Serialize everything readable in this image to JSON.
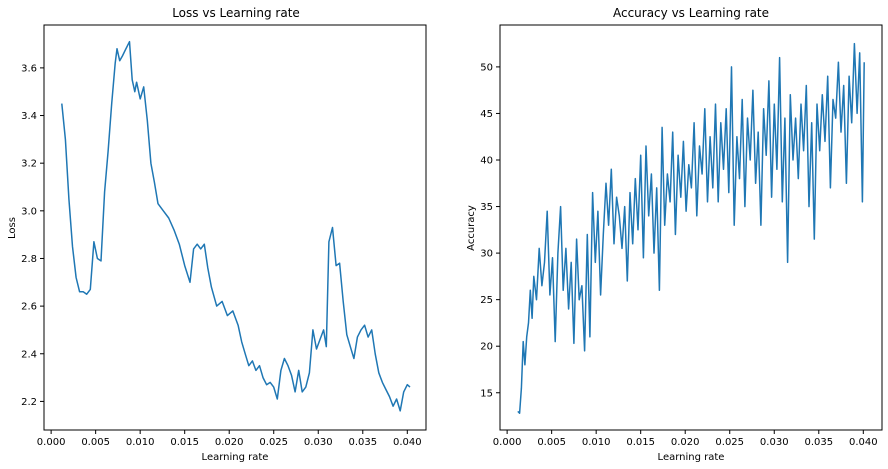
{
  "chart_data": [
    {
      "type": "line",
      "title": "Loss vs Learning rate",
      "xlabel": "Learning rate",
      "ylabel": "Loss",
      "xlim": [
        -0.0008,
        0.0421
      ],
      "ylim": [
        2.08,
        3.78
      ],
      "xticks": [
        0.0,
        0.005,
        0.01,
        0.015,
        0.02,
        0.025,
        0.03,
        0.035,
        0.04
      ],
      "xtick_labels": [
        "0.000",
        "0.005",
        "0.010",
        "0.015",
        "0.020",
        "0.025",
        "0.030",
        "0.035",
        "0.040"
      ],
      "yticks": [
        2.2,
        2.4,
        2.6,
        2.8,
        3.0,
        3.2,
        3.4,
        3.6
      ],
      "ytick_labels": [
        "2.2",
        "2.4",
        "2.6",
        "2.8",
        "3.0",
        "3.2",
        "3.4",
        "3.6"
      ],
      "color": "#1f77b4",
      "grid": false,
      "series": [
        {
          "name": "Loss",
          "x": [
            0.0012,
            0.0016,
            0.002,
            0.0024,
            0.0028,
            0.0032,
            0.0036,
            0.004,
            0.0044,
            0.0048,
            0.0052,
            0.0056,
            0.006,
            0.0064,
            0.0068,
            0.0072,
            0.0074,
            0.0077,
            0.008,
            0.0084,
            0.0088,
            0.0091,
            0.0094,
            0.0096,
            0.01,
            0.0104,
            0.0108,
            0.0112,
            0.0116,
            0.012,
            0.0126,
            0.0132,
            0.0138,
            0.0144,
            0.015,
            0.0156,
            0.016,
            0.0164,
            0.0168,
            0.0172,
            0.0176,
            0.018,
            0.0186,
            0.0192,
            0.0198,
            0.0204,
            0.021,
            0.0214,
            0.0218,
            0.0222,
            0.0226,
            0.023,
            0.0234,
            0.0238,
            0.0242,
            0.0246,
            0.025,
            0.0254,
            0.0258,
            0.0262,
            0.0266,
            0.027,
            0.0274,
            0.0278,
            0.0282,
            0.0286,
            0.029,
            0.0294,
            0.0298,
            0.0302,
            0.0306,
            0.0309,
            0.0312,
            0.0316,
            0.032,
            0.0324,
            0.0328,
            0.0332,
            0.0336,
            0.034,
            0.0344,
            0.0348,
            0.0352,
            0.0356,
            0.036,
            0.0364,
            0.0368,
            0.0372,
            0.0376,
            0.038,
            0.0384,
            0.0388,
            0.0392,
            0.0396,
            0.04,
            0.0403
          ],
          "y": [
            3.45,
            3.3,
            3.05,
            2.85,
            2.72,
            2.66,
            2.66,
            2.65,
            2.67,
            2.87,
            2.8,
            2.79,
            3.08,
            3.25,
            3.45,
            3.62,
            3.68,
            3.63,
            3.65,
            3.68,
            3.71,
            3.55,
            3.5,
            3.54,
            3.47,
            3.52,
            3.38,
            3.2,
            3.12,
            3.03,
            3.0,
            2.97,
            2.92,
            2.86,
            2.77,
            2.7,
            2.84,
            2.86,
            2.84,
            2.86,
            2.76,
            2.68,
            2.6,
            2.62,
            2.56,
            2.58,
            2.52,
            2.45,
            2.4,
            2.35,
            2.37,
            2.33,
            2.35,
            2.3,
            2.27,
            2.28,
            2.26,
            2.21,
            2.33,
            2.38,
            2.35,
            2.31,
            2.24,
            2.33,
            2.24,
            2.26,
            2.32,
            2.5,
            2.42,
            2.46,
            2.5,
            2.43,
            2.87,
            2.93,
            2.77,
            2.78,
            2.62,
            2.48,
            2.43,
            2.38,
            2.47,
            2.5,
            2.52,
            2.47,
            2.5,
            2.4,
            2.32,
            2.28,
            2.25,
            2.22,
            2.18,
            2.21,
            2.16,
            2.24,
            2.27,
            2.26
          ]
        }
      ]
    },
    {
      "type": "line",
      "title": "Accuracy vs Learning rate",
      "xlabel": "Learning rate",
      "ylabel": "Accuracy",
      "xlim": [
        -0.0008,
        0.0421
      ],
      "ylim": [
        11.0,
        54.5
      ],
      "xticks": [
        0.0,
        0.005,
        0.01,
        0.015,
        0.02,
        0.025,
        0.03,
        0.035,
        0.04
      ],
      "xtick_labels": [
        "0.000",
        "0.005",
        "0.010",
        "0.015",
        "0.020",
        "0.025",
        "0.030",
        "0.035",
        "0.040"
      ],
      "yticks": [
        15,
        20,
        25,
        30,
        35,
        40,
        45,
        50
      ],
      "ytick_labels": [
        "15",
        "20",
        "25",
        "30",
        "35",
        "40",
        "45",
        "50"
      ],
      "color": "#1f77b4",
      "grid": false,
      "series": [
        {
          "name": "Accuracy",
          "x": [
            0.0012,
            0.0014,
            0.0016,
            0.0018,
            0.002,
            0.0022,
            0.0024,
            0.0026,
            0.0028,
            0.003,
            0.0033,
            0.0036,
            0.0039,
            0.0042,
            0.0045,
            0.0048,
            0.0051,
            0.0054,
            0.0057,
            0.006,
            0.0063,
            0.0066,
            0.0069,
            0.0072,
            0.0075,
            0.0078,
            0.0081,
            0.0084,
            0.0087,
            0.009,
            0.0093,
            0.0096,
            0.0099,
            0.0102,
            0.0105,
            0.0108,
            0.0111,
            0.0114,
            0.0117,
            0.012,
            0.0123,
            0.0126,
            0.0129,
            0.0132,
            0.0135,
            0.0138,
            0.0141,
            0.0144,
            0.0147,
            0.015,
            0.0153,
            0.0156,
            0.0159,
            0.0162,
            0.0165,
            0.0168,
            0.0171,
            0.0174,
            0.0177,
            0.018,
            0.0183,
            0.0186,
            0.0189,
            0.0192,
            0.0195,
            0.0198,
            0.0201,
            0.0204,
            0.0207,
            0.021,
            0.0213,
            0.0216,
            0.0219,
            0.0222,
            0.0225,
            0.0228,
            0.0231,
            0.0234,
            0.0237,
            0.024,
            0.0243,
            0.0246,
            0.0249,
            0.0252,
            0.0255,
            0.0258,
            0.0261,
            0.0264,
            0.0267,
            0.027,
            0.0273,
            0.0276,
            0.0279,
            0.0282,
            0.0285,
            0.0288,
            0.0291,
            0.0294,
            0.0297,
            0.03,
            0.0303,
            0.0306,
            0.0309,
            0.0312,
            0.0315,
            0.0318,
            0.0321,
            0.0324,
            0.0327,
            0.033,
            0.0333,
            0.0336,
            0.0339,
            0.0342,
            0.0345,
            0.0348,
            0.0351,
            0.0354,
            0.0357,
            0.036,
            0.0363,
            0.0366,
            0.0369,
            0.0372,
            0.0375,
            0.0378,
            0.0381,
            0.0384,
            0.0387,
            0.039,
            0.0393,
            0.0396,
            0.0399,
            0.0401
          ],
          "y": [
            13.0,
            12.8,
            15.5,
            20.5,
            18.0,
            21.0,
            22.5,
            26.0,
            23.0,
            27.5,
            25.0,
            30.5,
            26.5,
            29.0,
            34.5,
            25.5,
            29.5,
            20.5,
            30.0,
            35.0,
            26.0,
            30.5,
            24.0,
            29.0,
            20.3,
            31.5,
            25.0,
            26.5,
            19.5,
            32.0,
            21.0,
            36.5,
            29.0,
            34.5,
            25.5,
            32.0,
            37.5,
            33.0,
            39.0,
            31.0,
            36.0,
            34.0,
            30.5,
            35.0,
            27.0,
            36.5,
            31.0,
            38.0,
            32.5,
            40.5,
            29.5,
            41.5,
            34.0,
            38.5,
            30.0,
            37.0,
            26.0,
            43.5,
            33.0,
            38.5,
            35.5,
            43.0,
            32.0,
            40.5,
            36.0,
            42.0,
            34.5,
            39.5,
            37.0,
            44.0,
            34.0,
            41.5,
            38.5,
            45.5,
            35.5,
            42.5,
            37.0,
            46.0,
            35.5,
            44.0,
            39.0,
            45.5,
            36.5,
            50.0,
            33.0,
            42.5,
            38.0,
            46.5,
            35.0,
            44.5,
            40.0,
            47.5,
            37.5,
            43.0,
            33.0,
            45.5,
            40.5,
            48.5,
            36.0,
            46.0,
            39.0,
            51.0,
            35.5,
            44.5,
            29.0,
            47.0,
            40.0,
            44.5,
            38.0,
            46.0,
            41.0,
            48.0,
            35.0,
            44.0,
            31.5,
            46.0,
            41.0,
            47.0,
            42.0,
            49.0,
            37.0,
            46.5,
            44.5,
            50.5,
            43.0,
            48.0,
            37.5,
            49.0,
            44.0,
            52.5,
            45.0,
            51.5,
            35.5,
            50.5
          ]
        }
      ]
    }
  ]
}
